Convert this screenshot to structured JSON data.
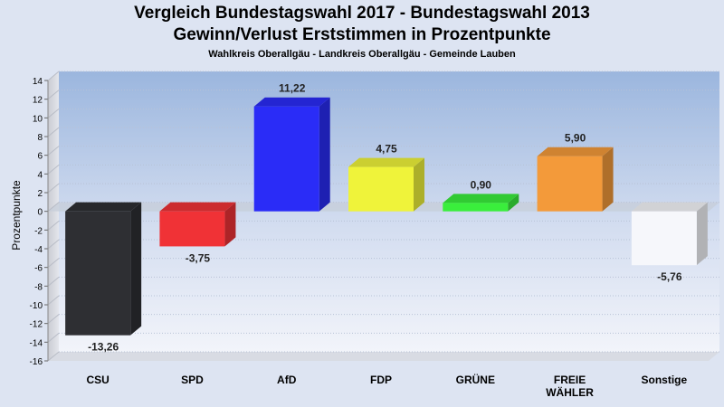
{
  "header": {
    "title": "Vergleich Bundestagswahl 2017 - Bundestagswahl 2013",
    "subtitle": "Gewinn/Verlust Erststimmen in Prozentpunkte",
    "region": "Wahlkreis Oberallgäu - Landkreis Oberallgäu - Gemeinde Lauben"
  },
  "chart_data": {
    "type": "bar",
    "title": "Vergleich Bundestagswahl 2017 - Bundestagswahl 2013",
    "subtitle": "Gewinn/Verlust Erststimmen in Prozentpunkte",
    "xlabel": "",
    "ylabel": "Prozentpunkte",
    "ylim": [
      -16,
      14
    ],
    "yticks": [
      14,
      12,
      10,
      8,
      6,
      4,
      2,
      0,
      -2,
      -4,
      -6,
      -8,
      -10,
      -12,
      -14,
      -16
    ],
    "grid": true,
    "categories": [
      {
        "label": [
          "CSU"
        ],
        "value": -13.26,
        "value_label": "-13,26",
        "color": "#2e2f33"
      },
      {
        "label": [
          "SPD"
        ],
        "value": -3.75,
        "value_label": "-3,75",
        "color": "#f03236"
      },
      {
        "label": [
          "AfD"
        ],
        "value": 11.22,
        "value_label": "11,22",
        "color": "#2a2cf7"
      },
      {
        "label": [
          "FDP"
        ],
        "value": 4.75,
        "value_label": "4,75",
        "color": "#eff33a"
      },
      {
        "label": [
          "GRÜNE"
        ],
        "value": 0.9,
        "value_label": "0,90",
        "color": "#3aee3c"
      },
      {
        "label": [
          "FREIE",
          "WÄHLER"
        ],
        "value": 5.9,
        "value_label": "5,90",
        "color": "#f39a3a"
      },
      {
        "label": [
          "Sonstige"
        ],
        "value": -5.76,
        "value_label": "-5,76",
        "color": "#f6f7fb"
      }
    ]
  }
}
